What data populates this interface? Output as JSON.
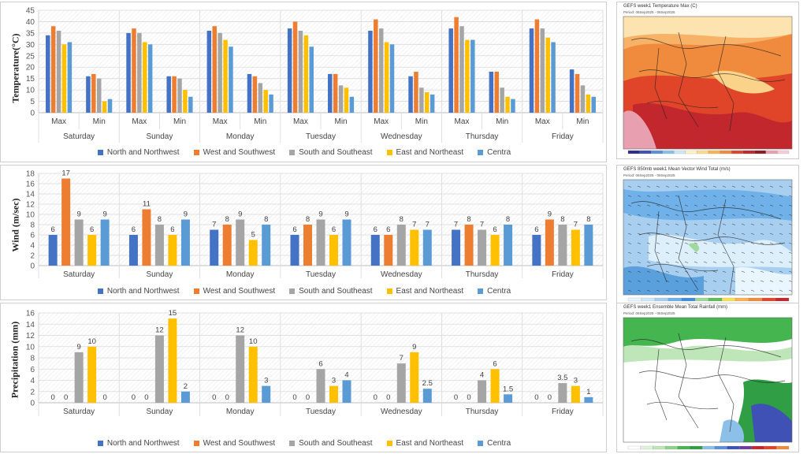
{
  "colors": {
    "series": [
      "#4472c4",
      "#ed7d31",
      "#a5a5a5",
      "#ffc000",
      "#5b9bd5"
    ]
  },
  "legend": [
    "North and Northwest",
    "West and Southwest",
    "South and Southeast",
    "East and Northeast",
    "Centra"
  ],
  "chart_data": [
    {
      "type": "bar",
      "ylabel": "Temperature(°C)",
      "ylim": [
        0,
        45
      ],
      "yticks": [
        0,
        5,
        10,
        15,
        20,
        25,
        30,
        35,
        40,
        45
      ],
      "groups": [
        "Saturday",
        "Sunday",
        "Monday",
        "Tuesday",
        "Wednesday",
        "Thursday",
        "Friday"
      ],
      "subgroups": [
        "Max",
        "Min"
      ],
      "show_value_labels": false,
      "series": [
        {
          "name": "North and Northwest",
          "values": [
            [
              34,
              16
            ],
            [
              35,
              16
            ],
            [
              36,
              17
            ],
            [
              37,
              17
            ],
            [
              36,
              16
            ],
            [
              37,
              18
            ],
            [
              37,
              19
            ]
          ]
        },
        {
          "name": "West and Southwest",
          "values": [
            [
              38,
              17
            ],
            [
              37,
              16
            ],
            [
              38,
              16
            ],
            [
              40,
              17
            ],
            [
              41,
              18
            ],
            [
              42,
              18
            ],
            [
              41,
              17
            ]
          ]
        },
        {
          "name": "South and Southeast",
          "values": [
            [
              36,
              15
            ],
            [
              35,
              15
            ],
            [
              35,
              13
            ],
            [
              36,
              12
            ],
            [
              37,
              11
            ],
            [
              38,
              11
            ],
            [
              37,
              12
            ]
          ]
        },
        {
          "name": "East and Northeast",
          "values": [
            [
              30,
              5
            ],
            [
              31,
              10
            ],
            [
              32,
              10
            ],
            [
              34,
              11
            ],
            [
              31,
              9
            ],
            [
              32,
              7
            ],
            [
              33,
              8
            ]
          ]
        },
        {
          "name": "Centra",
          "values": [
            [
              31,
              6
            ],
            [
              30,
              7
            ],
            [
              29,
              8
            ],
            [
              29,
              7
            ],
            [
              30,
              8
            ],
            [
              32,
              6
            ],
            [
              31,
              7
            ]
          ]
        }
      ]
    },
    {
      "type": "bar",
      "ylabel": "Wind (m/sec)",
      "ylim": [
        0,
        18
      ],
      "yticks": [
        0,
        2,
        4,
        6,
        8,
        10,
        12,
        14,
        16,
        18
      ],
      "categories": [
        "Saturday",
        "Sunday",
        "Monday",
        "Tuesday",
        "Wednesday",
        "Thursday",
        "Friday"
      ],
      "show_value_labels": true,
      "series": [
        {
          "name": "North and Northwest",
          "values": [
            6,
            6,
            7,
            6,
            6,
            7,
            6
          ]
        },
        {
          "name": "West and Southwest",
          "values": [
            17,
            11,
            8,
            8,
            6,
            8,
            9
          ]
        },
        {
          "name": "South and Southeast",
          "values": [
            9,
            8,
            9,
            9,
            8,
            7,
            8
          ]
        },
        {
          "name": "East and Northeast",
          "values": [
            6,
            6,
            5,
            6,
            7,
            6,
            7
          ]
        },
        {
          "name": "Centra",
          "values": [
            9,
            9,
            8,
            9,
            7,
            8,
            8
          ]
        }
      ]
    },
    {
      "type": "bar",
      "ylabel": "Precipitation (mm)",
      "ylim": [
        0,
        16
      ],
      "yticks": [
        0,
        2,
        4,
        6,
        8,
        10,
        12,
        14,
        16
      ],
      "categories": [
        "Saturday",
        "Sunday",
        "Monday",
        "Tuesday",
        "Wednesday",
        "Thursday",
        "Friday"
      ],
      "show_value_labels": true,
      "series": [
        {
          "name": "North and Northwest",
          "values": [
            0,
            0,
            0,
            0,
            0,
            0,
            0
          ]
        },
        {
          "name": "West and Southwest",
          "values": [
            0,
            0,
            0,
            0,
            0,
            0,
            0
          ]
        },
        {
          "name": "South and Southeast",
          "values": [
            9,
            12,
            12,
            6,
            7,
            4,
            3.5
          ]
        },
        {
          "name": "East and Northeast",
          "values": [
            10,
            15,
            10,
            3,
            9,
            6,
            3
          ]
        },
        {
          "name": "Centra",
          "values": [
            0,
            2,
            3,
            4,
            2.5,
            1.5,
            1
          ]
        }
      ]
    }
  ],
  "maps": [
    {
      "title": "GEFS week1 Temperature Max (C)",
      "period": "Period: 06Sep2025 - 06Sep2025",
      "theme": "temperature"
    },
    {
      "title": "GEFS 850mb week1 Mean Vector Wind Total (m/s)",
      "period": "Period: 06Sep2025 - 06Sep2025",
      "theme": "wind"
    },
    {
      "title": "GEFS week1 Ensemble Mean Total Rainfall (mm)",
      "period": "Period: 06Sep2025 - 06Sep2025",
      "theme": "rain"
    }
  ]
}
